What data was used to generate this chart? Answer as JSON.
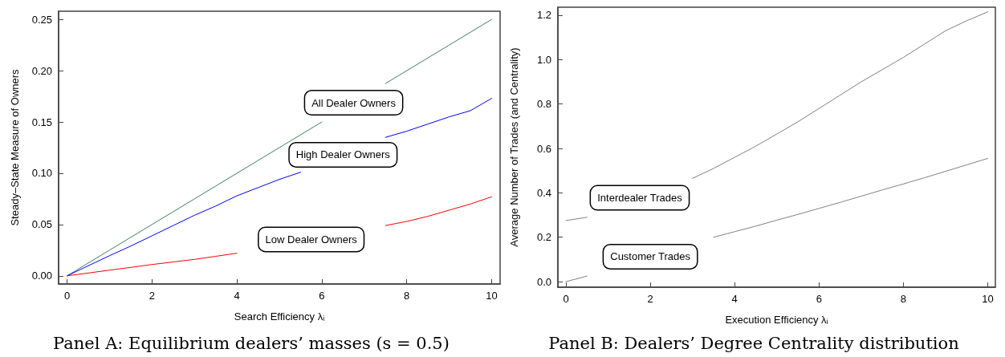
{
  "chart_data": [
    {
      "type": "line",
      "title": "Panel A: Equilibrium dealers’ masses (s = 0.5)",
      "xlabel": "Search Efficiency λᵢ",
      "ylabel": "Steady–State Measure of Owners",
      "x": [
        0,
        0.5,
        1,
        1.5,
        2,
        2.5,
        3,
        3.5,
        4,
        4.5,
        5,
        5.5,
        6,
        6.5,
        7,
        7.5,
        8,
        8.5,
        9,
        9.5,
        10
      ],
      "series": [
        {
          "name": "All Dealer Owners",
          "color": "#3f7f5f",
          "values": [
            0,
            0.0125,
            0.025,
            0.0375,
            0.05,
            0.0625,
            0.075,
            0.0875,
            0.1,
            0.1125,
            0.125,
            0.1375,
            0.15,
            null,
            null,
            0.1875,
            0.2,
            0.2125,
            0.225,
            0.2375,
            0.25
          ]
        },
        {
          "name": "High Dealer Owners",
          "color": "#0000ff",
          "values": [
            0,
            0.0098,
            0.0196,
            0.029,
            0.039,
            0.049,
            0.059,
            0.068,
            0.078,
            0.086,
            0.094,
            0.101,
            null,
            null,
            null,
            0.135,
            0.141,
            0.148,
            0.155,
            0.161,
            0.173
          ]
        },
        {
          "name": "Low Dealer Owners",
          "color": "#ff0000",
          "values": [
            0,
            0.0027,
            0.0055,
            0.0082,
            0.011,
            0.0135,
            0.016,
            0.019,
            0.022,
            null,
            null,
            null,
            null,
            null,
            null,
            0.049,
            0.053,
            0.058,
            0.064,
            0.07,
            0.077
          ]
        }
      ],
      "xlim": [
        -0.2,
        10.2
      ],
      "xticks": [
        0,
        2,
        4,
        6,
        8,
        10
      ],
      "ylim": [
        -0.008,
        0.258
      ],
      "yticks": [
        {
          "value": 0,
          "label": "0.00"
        },
        0.05,
        {
          "value": 0.1,
          "label": "0.10"
        },
        0.15,
        {
          "value": 0.2,
          "label": "0.20"
        },
        0.25
      ],
      "grid": false,
      "legend": false,
      "marker": "none",
      "line_style": "solid"
    },
    {
      "type": "line",
      "title": "Panel B: Dealers’ Degree Centrality distribution",
      "xlabel": "Execution Efficiency λᵢ",
      "ylabel": "Average Number of Trades (and Centrality)",
      "x": [
        0,
        0.5,
        1,
        1.5,
        2,
        2.5,
        3,
        3.5,
        4,
        4.5,
        5,
        5.5,
        6,
        6.5,
        7,
        7.5,
        8,
        8.5,
        9,
        9.5,
        10
      ],
      "series": [
        {
          "name": "Interdealer Trades",
          "color": "#808080",
          "values": [
            0.275,
            0.29,
            null,
            null,
            null,
            null,
            0.465,
            0.51,
            0.56,
            0.61,
            0.665,
            0.72,
            0.78,
            0.84,
            0.9,
            0.955,
            1.01,
            1.07,
            1.13,
            1.175,
            1.215
          ]
        },
        {
          "name": "Customer Trades",
          "color": "#808080",
          "values": [
            0,
            0.025,
            null,
            null,
            null,
            null,
            null,
            0.2,
            0.225,
            0.25,
            0.277,
            0.303,
            0.33,
            0.357,
            0.385,
            0.413,
            0.44,
            0.468,
            0.497,
            0.526,
            0.555
          ]
        }
      ],
      "xlim": [
        -0.19,
        10.18
      ],
      "xticks": [
        0,
        2,
        4,
        6,
        8,
        10
      ],
      "ylim": [
        -0.025,
        1.236
      ],
      "yticks": [
        {
          "value": 0,
          "label": "0.0"
        },
        0.2,
        0.4,
        0.6,
        0.8,
        {
          "value": 1,
          "label": "1.0"
        },
        1.2
      ],
      "grid": false,
      "legend": false,
      "marker": "none",
      "line_style": "solid"
    }
  ]
}
